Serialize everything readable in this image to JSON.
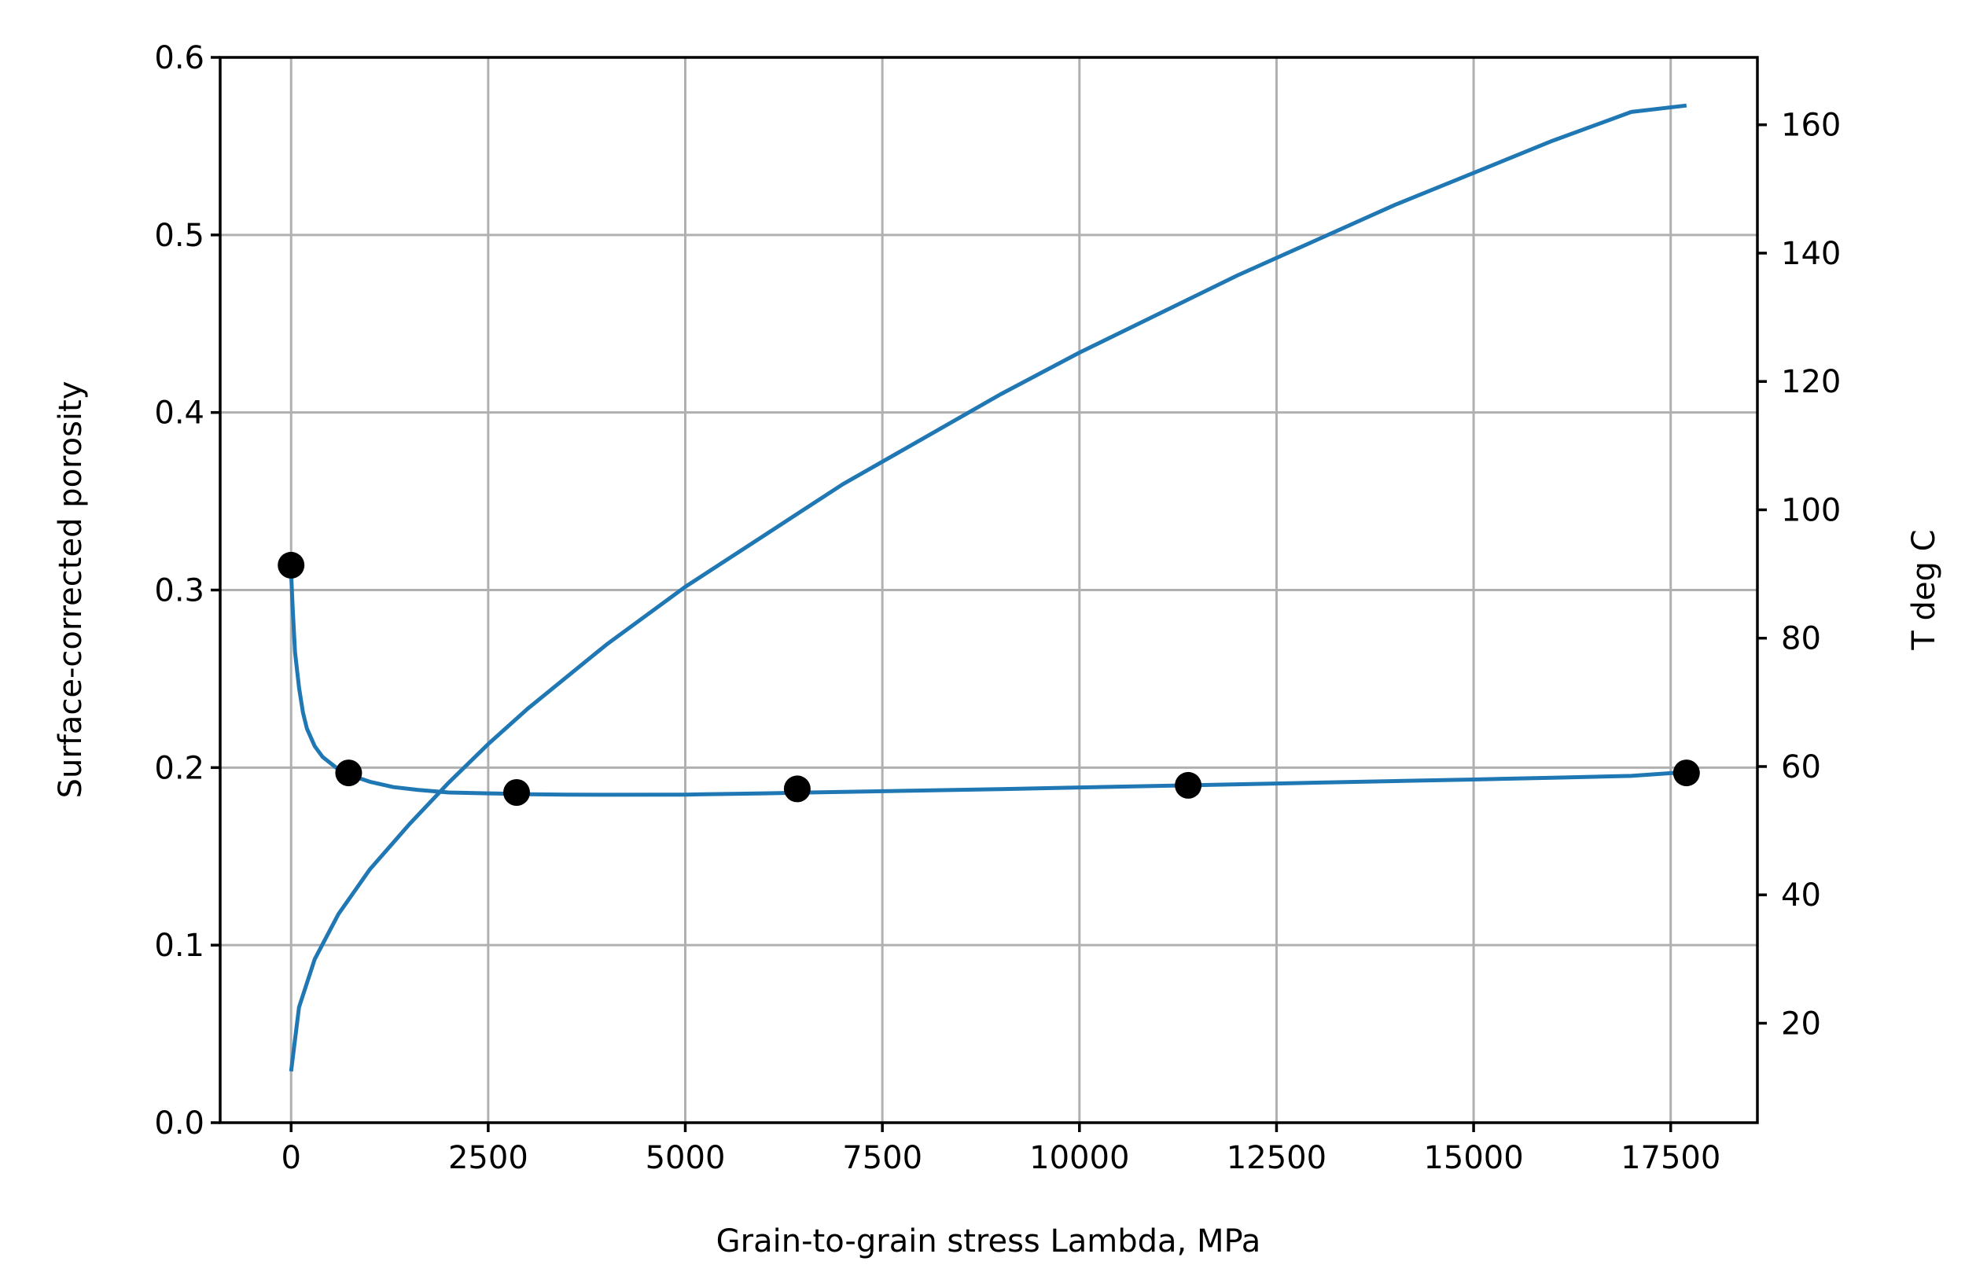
{
  "chart_data": {
    "type": "line",
    "title": "",
    "xlabel": "Grain-to-grain stress Lambda, MPa",
    "ylabel": "Surface-corrected  porosity",
    "ylabel_right": "T deg C",
    "grid": true,
    "legend": "none",
    "xlim": [
      -900,
      18600
    ],
    "ylim": [
      0.0,
      0.6
    ],
    "ylim_right": [
      4.5,
      170.5
    ],
    "x_ticks": [
      0,
      2500,
      5000,
      7500,
      10000,
      12500,
      15000,
      17500
    ],
    "x_tick_labels": [
      "0",
      "2500",
      "5000",
      "7500",
      "10000",
      "12500",
      "15000",
      "17500"
    ],
    "y_ticks": [
      0.0,
      0.1,
      0.2,
      0.3,
      0.4,
      0.5,
      0.6
    ],
    "y_tick_labels": [
      "0.0",
      "0.1",
      "0.2",
      "0.3",
      "0.4",
      "0.5",
      "0.6"
    ],
    "y_right_ticks": [
      20,
      40,
      60,
      80,
      100,
      120,
      140,
      160
    ],
    "y_right_tick_labels": [
      "20",
      "40",
      "60",
      "80",
      "100",
      "120",
      "140",
      "160"
    ],
    "colors": {
      "line": "#1f77b4",
      "points": "#000000",
      "grid": "#b0b0b0"
    },
    "series": [
      {
        "kind": "scatter",
        "axis": "left",
        "x": [
          0,
          730,
          2860,
          6420,
          11380,
          17700
        ],
        "y": [
          0.314,
          0.197,
          0.186,
          0.188,
          0.19,
          0.197
        ]
      },
      {
        "kind": "line",
        "axis": "left",
        "x": [
          0,
          20,
          50,
          100,
          150,
          200,
          300,
          400,
          600,
          800,
          1000,
          1300,
          1600,
          2000,
          2500,
          3000,
          3500,
          4000,
          5000,
          6000,
          7000,
          8000,
          9000,
          10000,
          11000,
          12000,
          13000,
          14000,
          15000,
          16000,
          17000,
          17700
        ],
        "y": [
          0.31,
          0.29,
          0.265,
          0.245,
          0.231,
          0.222,
          0.212,
          0.206,
          0.199,
          0.195,
          0.192,
          0.189,
          0.1875,
          0.186,
          0.1855,
          0.185,
          0.1848,
          0.1847,
          0.1848,
          0.1855,
          0.1863,
          0.1871,
          0.1879,
          0.1888,
          0.1897,
          0.1906,
          0.1915,
          0.1924,
          0.1933,
          0.1943,
          0.1953,
          0.1975
        ]
      },
      {
        "kind": "line",
        "axis": "right",
        "x": [
          0,
          100,
          300,
          600,
          1000,
          1500,
          2000,
          2500,
          3000,
          4000,
          5000,
          6000,
          7000,
          8000,
          9000,
          10000,
          11000,
          12000,
          13000,
          14000,
          15000,
          16000,
          17000,
          17700
        ],
        "y": [
          12.5,
          22.5,
          30.0,
          37.0,
          44.0,
          51.0,
          57.5,
          63.5,
          69.0,
          79.0,
          88.0,
          96.0,
          104.0,
          111.0,
          118.0,
          124.5,
          130.5,
          136.5,
          142.0,
          147.5,
          152.5,
          157.5,
          162.0,
          163.0
        ]
      }
    ]
  }
}
